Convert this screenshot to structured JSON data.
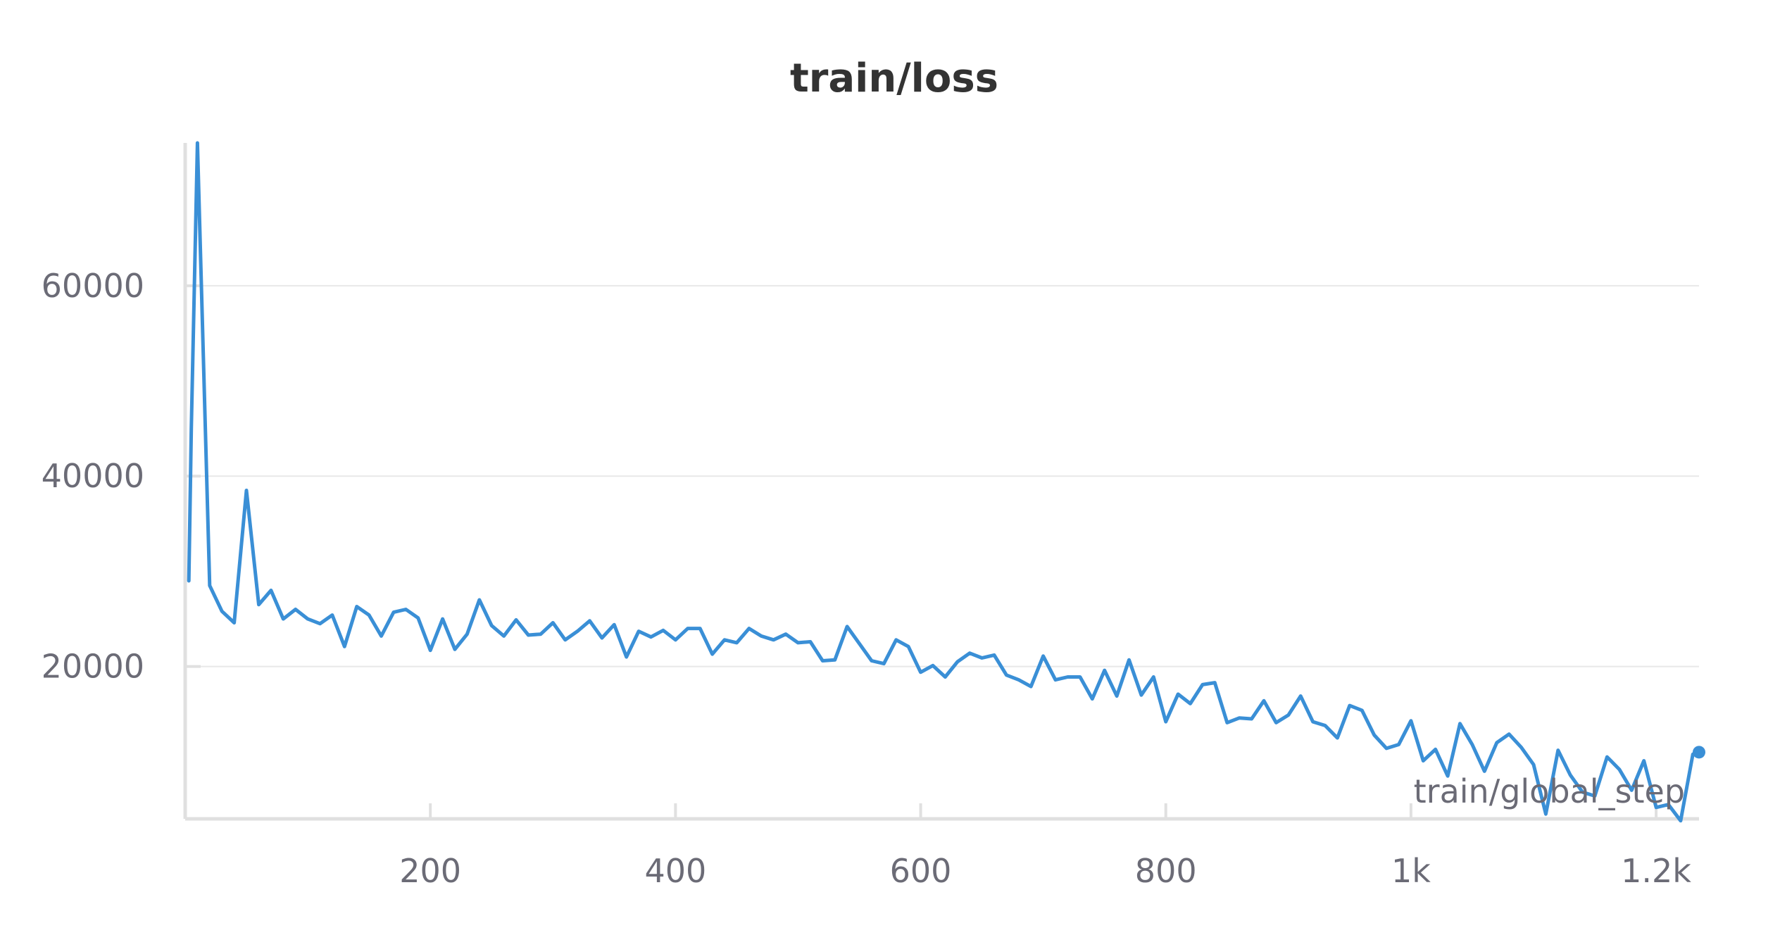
{
  "chart_data": {
    "type": "line",
    "title": "train/loss",
    "xlabel": "train/global_step",
    "ylabel": "",
    "xlim": [
      0,
      1235
    ],
    "ylim": [
      4000,
      75000
    ],
    "x_ticks": [
      {
        "value": 200,
        "label": "200"
      },
      {
        "value": 400,
        "label": "400"
      },
      {
        "value": 600,
        "label": "600"
      },
      {
        "value": 800,
        "label": "800"
      },
      {
        "value": 1000,
        "label": "1k"
      },
      {
        "value": 1200,
        "label": "1.2k"
      }
    ],
    "y_ticks": [
      {
        "value": 20000,
        "label": "20000"
      },
      {
        "value": 40000,
        "label": "40000"
      },
      {
        "value": 60000,
        "label": "60000"
      }
    ],
    "grid": true,
    "legend": "none",
    "line_color": "#3a8fd6",
    "series": [
      {
        "x": [
          3,
          5,
          10,
          20,
          30,
          40,
          50,
          60,
          70,
          80,
          90,
          100,
          110,
          120,
          130,
          140,
          150,
          160,
          170,
          180,
          190,
          200,
          210,
          220,
          230,
          240,
          250,
          260,
          270,
          280,
          290,
          300,
          310,
          320,
          330,
          340,
          350,
          360,
          370,
          380,
          390,
          400,
          410,
          420,
          430,
          440,
          450,
          460,
          470,
          480,
          490,
          500,
          510,
          520,
          530,
          540,
          550,
          560,
          570,
          580,
          590,
          600,
          610,
          620,
          630,
          640,
          650,
          660,
          670,
          680,
          690,
          700,
          710,
          720,
          730,
          740,
          750,
          760,
          770,
          780,
          790,
          800,
          810,
          820,
          830,
          840,
          850,
          860,
          870,
          880,
          890,
          900,
          910,
          920,
          930,
          940,
          950,
          960,
          970,
          980,
          990,
          1000,
          1010,
          1020,
          1030,
          1040,
          1050,
          1060,
          1070,
          1080,
          1090,
          1100,
          1110,
          1120,
          1130,
          1140,
          1150,
          1160,
          1170,
          1180,
          1190,
          1200,
          1210,
          1220,
          1230,
          1235
        ],
        "values": [
          29000,
          45000,
          75000,
          28500,
          25800,
          24600,
          38500,
          26500,
          28000,
          25000,
          26000,
          25000,
          24500,
          25400,
          22100,
          26300,
          25400,
          23200,
          25700,
          26000,
          25100,
          21700,
          25000,
          21800,
          23400,
          27000,
          24300,
          23200,
          24900,
          23300,
          23400,
          24600,
          22800,
          23700,
          24800,
          23000,
          24400,
          21000,
          23700,
          23100,
          23800,
          22800,
          24000,
          24000,
          21300,
          22800,
          22500,
          24000,
          23200,
          22800,
          23400,
          22500,
          22600,
          20600,
          20700,
          24200,
          22400,
          20600,
          20300,
          22800,
          22100,
          19400,
          20100,
          18900,
          20500,
          21400,
          20900,
          21200,
          19100,
          18600,
          17900,
          21100,
          18600,
          18900,
          18900,
          16600,
          19600,
          16900,
          20700,
          17000,
          18900,
          14200,
          17100,
          16100,
          18100,
          18300,
          14100,
          14600,
          14500,
          16400,
          14100,
          14900,
          16900,
          14200,
          13800,
          12500,
          15900,
          15400,
          12800,
          11400,
          11800,
          14300,
          10100,
          11300,
          8500,
          14000,
          11800,
          9000,
          12000,
          12900,
          11500,
          9700,
          4500,
          11200,
          8600,
          6800,
          6400,
          10500,
          9200,
          7000,
          10100,
          5200,
          5500,
          3800,
          10800,
          11000
        ]
      }
    ]
  }
}
